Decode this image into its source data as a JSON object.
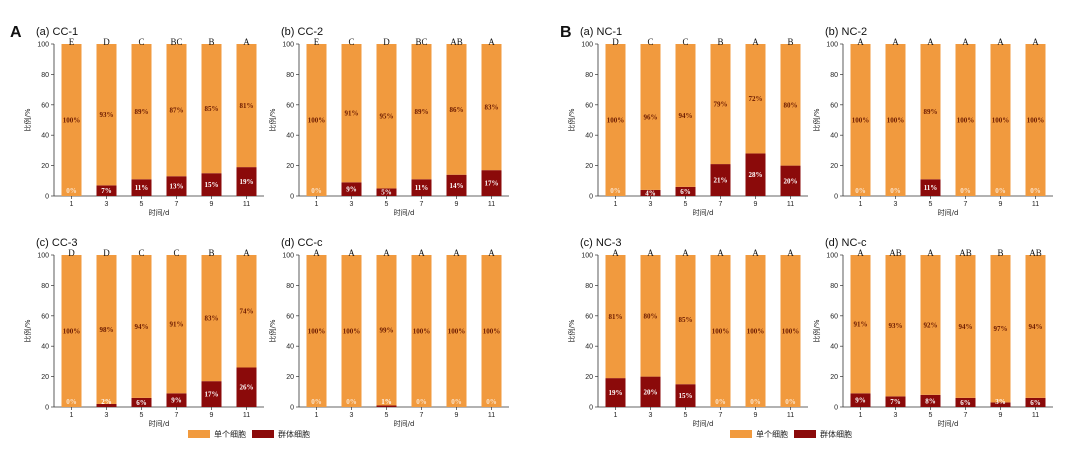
{
  "colors": {
    "single": "#f19a3e",
    "group": "#8b0a0a",
    "axis": "#333333"
  },
  "legend": {
    "single_label": "单个细胞",
    "group_label": "群体细胞"
  },
  "axis_text": {
    "ylabel": "比例/%",
    "xlabel": "时间/d"
  },
  "section_labels": [
    "A",
    "B"
  ],
  "chart_data": [
    {
      "type": "bar",
      "stacked": true,
      "title": "(a) CC-1",
      "categories": [
        "1",
        "3",
        "5",
        "7",
        "9",
        "11"
      ],
      "ylim": [
        0,
        100
      ],
      "yticks": [
        0,
        20,
        40,
        60,
        80,
        100
      ],
      "series": [
        {
          "name": "单个细胞",
          "values": [
            100,
            93,
            89,
            87,
            85,
            81
          ],
          "labels": [
            "100%",
            "93%",
            "89%",
            "87%",
            "85%",
            "81%"
          ]
        },
        {
          "name": "群体细胞",
          "values": [
            0,
            7,
            11,
            13,
            15,
            19
          ],
          "labels": [
            "0%",
            "7%",
            "11%",
            "13%",
            "15%",
            "19%"
          ]
        }
      ],
      "significance": [
        "E",
        "D",
        "C",
        "BC",
        "B",
        "A"
      ]
    },
    {
      "type": "bar",
      "stacked": true,
      "title": "(b) CC-2",
      "categories": [
        "1",
        "3",
        "5",
        "7",
        "9",
        "11"
      ],
      "ylim": [
        0,
        100
      ],
      "yticks": [
        0,
        20,
        40,
        60,
        80,
        100
      ],
      "series": [
        {
          "name": "单个细胞",
          "values": [
            100,
            91,
            95,
            89,
            86,
            83
          ],
          "labels": [
            "100%",
            "91%",
            "95%",
            "89%",
            "86%",
            "83%"
          ]
        },
        {
          "name": "群体细胞",
          "values": [
            0,
            9,
            5,
            11,
            14,
            17
          ],
          "labels": [
            "0%",
            "9%",
            "5%",
            "11%",
            "14%",
            "17%"
          ]
        }
      ],
      "significance": [
        "E",
        "C",
        "D",
        "BC",
        "AB",
        "A"
      ]
    },
    {
      "type": "bar",
      "stacked": true,
      "title": "(c) CC-3",
      "categories": [
        "1",
        "3",
        "5",
        "7",
        "9",
        "11"
      ],
      "ylim": [
        0,
        100
      ],
      "yticks": [
        0,
        20,
        40,
        60,
        80,
        100
      ],
      "series": [
        {
          "name": "单个细胞",
          "values": [
            100,
            98,
            94,
            91,
            83,
            74
          ],
          "labels": [
            "100%",
            "98%",
            "94%",
            "91%",
            "83%",
            "74%"
          ]
        },
        {
          "name": "群体细胞",
          "values": [
            0,
            2,
            6,
            9,
            17,
            26
          ],
          "labels": [
            "0%",
            "2%",
            "6%",
            "9%",
            "17%",
            "26%"
          ]
        }
      ],
      "significance": [
        "D",
        "D",
        "C",
        "C",
        "B",
        "A"
      ]
    },
    {
      "type": "bar",
      "stacked": true,
      "title": "(d) CC-c",
      "categories": [
        "1",
        "3",
        "5",
        "7",
        "9",
        "11"
      ],
      "ylim": [
        0,
        100
      ],
      "yticks": [
        0,
        20,
        40,
        60,
        80,
        100
      ],
      "series": [
        {
          "name": "单个细胞",
          "values": [
            100,
            100,
            99,
            100,
            100,
            100
          ],
          "labels": [
            "100%",
            "100%",
            "99%",
            "100%",
            "100%",
            "100%"
          ]
        },
        {
          "name": "群体细胞",
          "values": [
            0,
            0,
            1,
            0,
            0,
            0
          ],
          "labels": [
            "0%",
            "0%",
            "1%",
            "0%",
            "0%",
            "0%"
          ]
        }
      ],
      "significance": [
        "A",
        "A",
        "A",
        "A",
        "A",
        "A"
      ]
    },
    {
      "type": "bar",
      "stacked": true,
      "title": "(a) NC-1",
      "categories": [
        "1",
        "3",
        "5",
        "7",
        "9",
        "11"
      ],
      "ylim": [
        0,
        100
      ],
      "yticks": [
        0,
        20,
        40,
        60,
        80,
        100
      ],
      "series": [
        {
          "name": "单个细胞",
          "values": [
            100,
            96,
            94,
            79,
            72,
            80
          ],
          "labels": [
            "100%",
            "96%",
            "94%",
            "79%",
            "72%",
            "80%"
          ]
        },
        {
          "name": "群体细胞",
          "values": [
            0,
            4,
            6,
            21,
            28,
            20
          ],
          "labels": [
            "0%",
            "4%",
            "6%",
            "21%",
            "28%",
            "20%"
          ]
        }
      ],
      "significance": [
        "D",
        "C",
        "C",
        "B",
        "A",
        "B"
      ]
    },
    {
      "type": "bar",
      "stacked": true,
      "title": "(b) NC-2",
      "categories": [
        "1",
        "3",
        "5",
        "7",
        "9",
        "11"
      ],
      "ylim": [
        0,
        100
      ],
      "yticks": [
        0,
        20,
        40,
        60,
        80,
        100
      ],
      "series": [
        {
          "name": "单个细胞",
          "values": [
            100,
            100,
            89,
            100,
            100,
            100
          ],
          "labels": [
            "100%",
            "100%",
            "89%",
            "100%",
            "100%",
            "100%"
          ]
        },
        {
          "name": "群体细胞",
          "values": [
            0,
            0,
            11,
            0,
            0,
            0
          ],
          "labels": [
            "0%",
            "0%",
            "11%",
            "0%",
            "0%",
            "0%"
          ]
        }
      ],
      "significance": [
        "A",
        "A",
        "A",
        "A",
        "A",
        "A"
      ]
    },
    {
      "type": "bar",
      "stacked": true,
      "title": "(c) NC-3",
      "categories": [
        "1",
        "3",
        "5",
        "7",
        "9",
        "11"
      ],
      "ylim": [
        0,
        100
      ],
      "yticks": [
        0,
        20,
        40,
        60,
        80,
        100
      ],
      "series": [
        {
          "name": "单个细胞",
          "values": [
            81,
            80,
            85,
            100,
            100,
            100
          ],
          "labels": [
            "81%",
            "80%",
            "85%",
            "100%",
            "100%",
            "100%"
          ]
        },
        {
          "name": "群体细胞",
          "values": [
            19,
            20,
            15,
            0,
            0,
            0
          ],
          "labels": [
            "19%",
            "20%",
            "15%",
            "0%",
            "0%",
            "0%"
          ]
        }
      ],
      "significance": [
        "A",
        "A",
        "A",
        "A",
        "A",
        "A"
      ]
    },
    {
      "type": "bar",
      "stacked": true,
      "title": "(d) NC-c",
      "categories": [
        "1",
        "3",
        "5",
        "7",
        "9",
        "11"
      ],
      "ylim": [
        0,
        100
      ],
      "yticks": [
        0,
        20,
        40,
        60,
        80,
        100
      ],
      "series": [
        {
          "name": "单个细胞",
          "values": [
            91,
            93,
            92,
            94,
            97,
            94
          ],
          "labels": [
            "91%",
            "93%",
            "92%",
            "94%",
            "97%",
            "94%"
          ]
        },
        {
          "name": "群体细胞",
          "values": [
            9,
            7,
            8,
            6,
            3,
            6
          ],
          "labels": [
            "9%",
            "7%",
            "8%",
            "6%",
            "3%",
            "6%"
          ]
        }
      ],
      "significance": [
        "A",
        "AB",
        "A",
        "AB",
        "B",
        "AB"
      ]
    }
  ]
}
